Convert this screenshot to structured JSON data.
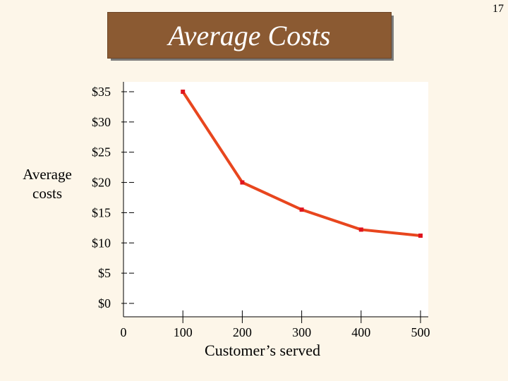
{
  "slide_number": "17",
  "title": "Average Costs",
  "chart_data": {
    "type": "line",
    "title": "Average Costs",
    "xlabel": "Customer’s served",
    "ylabel": "Average costs",
    "x_ticks": [
      "0",
      "100",
      "200",
      "300",
      "400",
      "500"
    ],
    "y_ticks": [
      "$35",
      "$30",
      "$25",
      "$20",
      "$15",
      "$10",
      "$5",
      "$0"
    ],
    "xlim": [
      0,
      500
    ],
    "ylim": [
      0,
      35
    ],
    "grid": false,
    "series": [
      {
        "color": "#e8461e",
        "x": [
          100,
          200,
          300,
          400,
          500
        ],
        "y": [
          35,
          20,
          15.5,
          12.2,
          11.2
        ]
      }
    ]
  }
}
